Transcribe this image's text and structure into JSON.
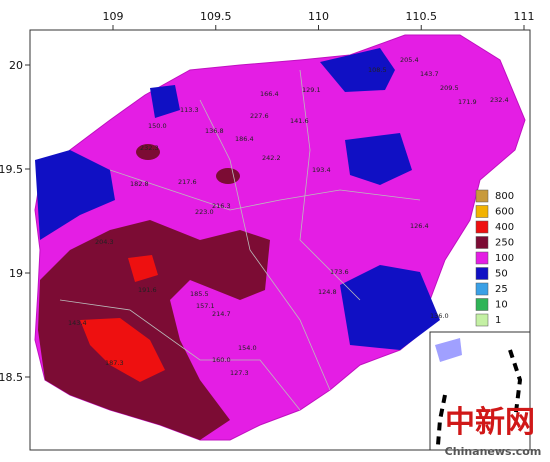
{
  "map": {
    "x_ticks": [
      109,
      109.5,
      110,
      110.5,
      111
    ],
    "y_ticks": [
      20,
      19.5,
      19,
      18.5
    ],
    "legend": {
      "values": [
        800,
        600,
        400,
        250,
        100,
        50,
        25,
        10,
        1
      ],
      "colors": [
        "#c89a3c",
        "#f2b200",
        "#ee1010",
        "#7c0c34",
        "#e41ee4",
        "#1010c4",
        "#3aa0e6",
        "#2fb457",
        "#c4f0a4"
      ]
    },
    "stations": [
      "205.4",
      "108.5",
      "143.7",
      "209.5",
      "171.9",
      "232.4",
      "150.0",
      "113.3",
      "136.8",
      "232.3",
      "242.2",
      "166.4",
      "227.6",
      "186.4",
      "141.6",
      "193.4",
      "217.6",
      "182.8",
      "216.3",
      "223.0",
      "204.3",
      "191.6",
      "185.5",
      "157.1",
      "214.7",
      "173.6",
      "154.0",
      "124.8",
      "143.4",
      "187.3",
      "160.0",
      "136.0",
      "129.1",
      "127.3",
      "126.4"
    ],
    "watermark": {
      "title": "中新网",
      "site": "Chinanews.com"
    }
  }
}
